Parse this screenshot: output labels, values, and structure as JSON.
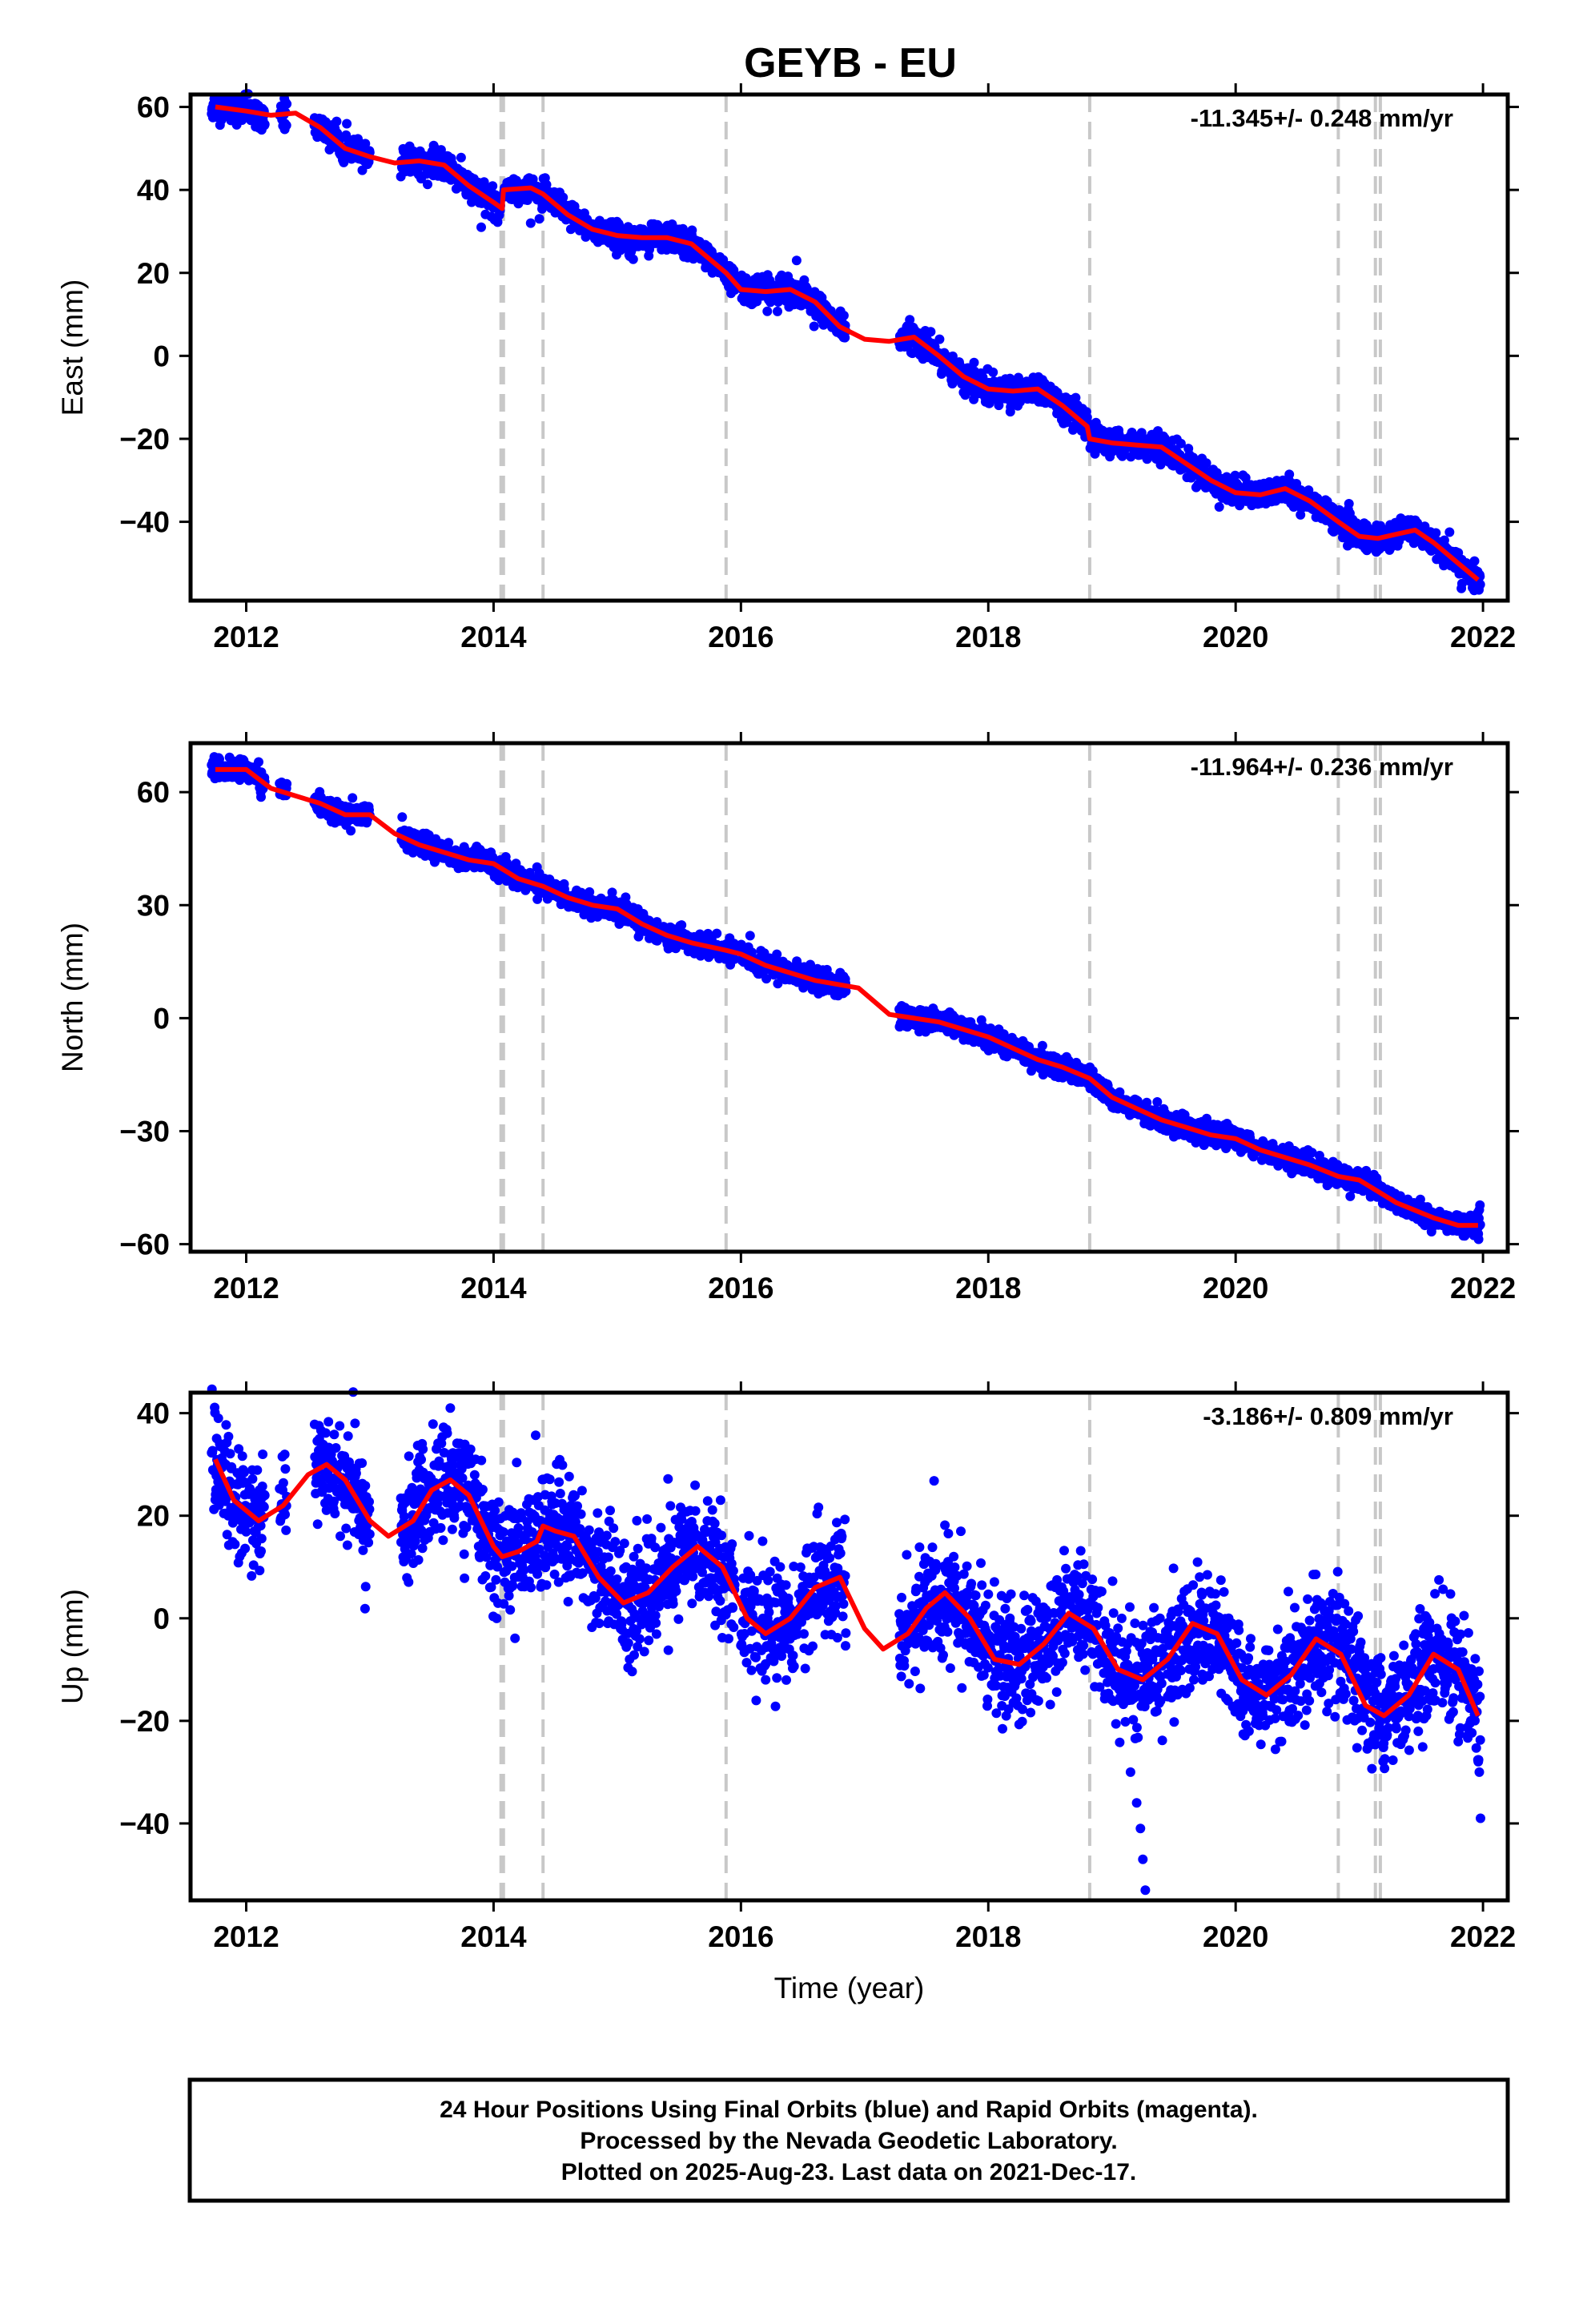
{
  "chart_data": [
    {
      "type": "scatter",
      "panel": "east",
      "title": "GEYB - EU",
      "xlabel": "",
      "ylabel": "East (mm)",
      "rate_label": "-11.345+/- 0.248 mm/yr",
      "xlim": [
        2011.55,
        2022.2
      ],
      "ylim": [
        -59,
        63
      ],
      "xticks": [
        2012,
        2014,
        2016,
        2018,
        2020,
        2022
      ],
      "xtick_labels": [
        "2012",
        "2014",
        "2016",
        "2018",
        "2020",
        "2022"
      ],
      "yticks": [
        -40,
        -20,
        0,
        20,
        40,
        60
      ],
      "ytick_labels": [
        "−40",
        "−20",
        "0",
        "20",
        "40",
        "60"
      ],
      "grid": false,
      "step_lines": [
        2014.06,
        2014.08,
        2014.4,
        2015.88,
        2018.82,
        2020.83,
        2021.13,
        2021.17
      ],
      "fit_line": {
        "color": "#ff0000",
        "x": [
          2011.75,
          2012.0,
          2012.2,
          2012.4,
          2012.6,
          2012.8,
          2013.0,
          2013.2,
          2013.4,
          2013.6,
          2013.8,
          2014.0,
          2014.07,
          2014.08,
          2014.3,
          2014.4,
          2014.6,
          2014.8,
          2015.0,
          2015.2,
          2015.4,
          2015.6,
          2015.88,
          2016.0,
          2016.2,
          2016.4,
          2016.6,
          2016.8,
          2017.0,
          2017.2,
          2017.4,
          2017.6,
          2017.8,
          2018.0,
          2018.2,
          2018.4,
          2018.6,
          2018.8,
          2018.82,
          2019.0,
          2019.2,
          2019.4,
          2019.6,
          2019.8,
          2020.0,
          2020.2,
          2020.4,
          2020.6,
          2020.83,
          2021.0,
          2021.15,
          2021.3,
          2021.45,
          2021.6,
          2021.8,
          2021.96
        ],
        "y": [
          60,
          59,
          58,
          58.5,
          55,
          50,
          48,
          46.5,
          47,
          46,
          41,
          37,
          35.5,
          40,
          40.5,
          39,
          34,
          30.5,
          29,
          28.5,
          28.5,
          27,
          20,
          16,
          15.5,
          16,
          13,
          7,
          4,
          3.5,
          4.5,
          0,
          -5,
          -8,
          -8.5,
          -8,
          -12,
          -17,
          -20,
          -21,
          -21.5,
          -22,
          -26,
          -30,
          -33,
          -33.5,
          -32,
          -35,
          -40,
          -43.5,
          -44,
          -43,
          -42,
          -45,
          -50,
          -54
        ]
      },
      "series": [
        {
          "name": "Final Orbits",
          "color": "#0000ff",
          "scatter": 1.6,
          "outliers": [
            [
              2013.9,
              31
            ],
            [
              2016.45,
              23
            ],
            [
              2014.3,
              32
            ]
          ],
          "x_ranges": [
            [
              2011.72,
              2012.15
            ],
            [
              2012.27,
              2012.33
            ],
            [
              2012.55,
              2013.0
            ],
            [
              2013.25,
              2014.06
            ],
            [
              2014.08,
              2015.95
            ],
            [
              2016.0,
              2016.85
            ],
            [
              2017.28,
              2021.98
            ]
          ]
        }
      ]
    },
    {
      "type": "scatter",
      "panel": "north",
      "title": "",
      "xlabel": "",
      "ylabel": "North (mm)",
      "rate_label": "-11.964+/- 0.236 mm/yr",
      "xlim": [
        2011.55,
        2022.2
      ],
      "ylim": [
        -62,
        73
      ],
      "xticks": [
        2012,
        2014,
        2016,
        2018,
        2020,
        2022
      ],
      "xtick_labels": [
        "2012",
        "2014",
        "2016",
        "2018",
        "2020",
        "2022"
      ],
      "yticks": [
        -60,
        -30,
        0,
        30,
        60
      ],
      "ytick_labels": [
        "−60",
        "−30",
        "0",
        "30",
        "60"
      ],
      "grid": false,
      "step_lines": [
        2014.06,
        2014.08,
        2014.4,
        2015.88,
        2018.82,
        2020.83,
        2021.13,
        2021.17
      ],
      "fit_line": {
        "color": "#ff0000",
        "x": [
          2011.75,
          2012.0,
          2012.2,
          2012.4,
          2012.6,
          2012.8,
          2013.0,
          2013.2,
          2013.4,
          2013.6,
          2013.8,
          2014.0,
          2014.2,
          2014.4,
          2014.6,
          2014.8,
          2015.0,
          2015.2,
          2015.4,
          2015.6,
          2015.88,
          2016.0,
          2016.2,
          2016.4,
          2016.6,
          2016.95,
          2017.2,
          2017.4,
          2017.6,
          2017.8,
          2018.0,
          2018.2,
          2018.4,
          2018.6,
          2018.82,
          2019.0,
          2019.2,
          2019.4,
          2019.6,
          2019.8,
          2020.0,
          2020.2,
          2020.4,
          2020.6,
          2020.83,
          2021.0,
          2021.15,
          2021.3,
          2021.45,
          2021.6,
          2021.8,
          2021.96
        ],
        "y": [
          66,
          66,
          61,
          59,
          57,
          54,
          54,
          49,
          46,
          44,
          42,
          41,
          37,
          35,
          32,
          30,
          29,
          25,
          22,
          20,
          18,
          17,
          14,
          12,
          10,
          8,
          1,
          0,
          -1,
          -3,
          -5,
          -8,
          -11,
          -13,
          -16,
          -21,
          -24,
          -27,
          -29,
          -31,
          -32,
          -35,
          -37,
          -39,
          -42,
          -43,
          -46,
          -49,
          -51,
          -53,
          -55,
          -55
        ]
      },
      "series": [
        {
          "name": "Final Orbits",
          "color": "#0000ff",
          "scatter": 1.4,
          "outliers": [
            [
              2011.85,
              64
            ],
            [
              2012.1,
              68
            ]
          ],
          "x_ranges": [
            [
              2011.72,
              2012.15
            ],
            [
              2012.27,
              2012.33
            ],
            [
              2012.55,
              2013.0
            ],
            [
              2013.25,
              2014.06
            ],
            [
              2014.08,
              2015.95
            ],
            [
              2016.0,
              2016.85
            ],
            [
              2017.28,
              2021.98
            ]
          ]
        }
      ]
    },
    {
      "type": "scatter",
      "panel": "up",
      "title": "",
      "xlabel": "Time (year)",
      "ylabel": "Up (mm)",
      "rate_label": "-3.186+/- 0.809 mm/yr",
      "xlim": [
        2011.55,
        2022.2
      ],
      "ylim": [
        -55,
        44
      ],
      "xticks": [
        2012,
        2014,
        2016,
        2018,
        2020,
        2022
      ],
      "xtick_labels": [
        "2012",
        "2014",
        "2016",
        "2018",
        "2020",
        "2022"
      ],
      "yticks": [
        -40,
        -20,
        0,
        20,
        40
      ],
      "ytick_labels": [
        "−40",
        "−20",
        "0",
        "20",
        "40"
      ],
      "grid": false,
      "step_lines": [
        2014.06,
        2014.08,
        2014.4,
        2015.88,
        2018.82,
        2020.83,
        2021.13,
        2021.17
      ],
      "fit_line": {
        "color": "#ff0000",
        "x": [
          2011.75,
          2011.9,
          2012.1,
          2012.3,
          2012.5,
          2012.65,
          2012.8,
          2013.0,
          2013.15,
          2013.35,
          2013.5,
          2013.65,
          2013.8,
          2014.0,
          2014.07,
          2014.2,
          2014.35,
          2014.4,
          2014.5,
          2014.65,
          2014.85,
          2015.05,
          2015.25,
          2015.45,
          2015.65,
          2015.85,
          2016.05,
          2016.2,
          2016.4,
          2016.6,
          2016.8,
          2017.0,
          2017.15,
          2017.35,
          2017.5,
          2017.65,
          2017.85,
          2018.05,
          2018.25,
          2018.45,
          2018.65,
          2018.85,
          2019.05,
          2019.25,
          2019.45,
          2019.65,
          2019.85,
          2020.05,
          2020.25,
          2020.45,
          2020.65,
          2020.85,
          2021.05,
          2021.2,
          2021.4,
          2021.6,
          2021.8,
          2021.96
        ],
        "y": [
          31,
          23,
          19,
          22,
          28,
          30,
          27,
          19,
          16,
          19,
          25,
          27,
          24,
          14,
          12,
          13,
          15,
          18,
          17,
          16,
          8,
          3,
          5,
          10,
          14,
          10,
          0,
          -3,
          0,
          6,
          8,
          -2,
          -6,
          -3,
          2,
          5,
          0,
          -8,
          -9,
          -5,
          1,
          -2,
          -10,
          -12,
          -8,
          -1,
          -3,
          -12,
          -15,
          -11,
          -4,
          -7,
          -17,
          -19,
          -15,
          -7,
          -10,
          -19
        ]
      },
      "series": [
        {
          "name": "Final Orbits",
          "color": "#0000ff",
          "scatter": 5.5,
          "outliers": [
            [
              2019.15,
              -30
            ],
            [
              2019.2,
              -36
            ],
            [
              2019.23,
              -41
            ],
            [
              2019.25,
              -47
            ],
            [
              2019.27,
              -53
            ],
            [
              2013.65,
              41
            ],
            [
              2012.88,
              38
            ],
            [
              2021.98,
              -39
            ],
            [
              2021.97,
              -30
            ],
            [
              2016.2,
              -12
            ],
            [
              2015.1,
              -8
            ]
          ],
          "x_ranges": [
            [
              2011.72,
              2012.15
            ],
            [
              2012.27,
              2012.33
            ],
            [
              2012.55,
              2013.0
            ],
            [
              2013.25,
              2014.06
            ],
            [
              2014.08,
              2015.95
            ],
            [
              2016.0,
              2016.85
            ],
            [
              2017.28,
              2021.98
            ]
          ]
        }
      ]
    }
  ],
  "footer": {
    "line1": "24 Hour Positions Using Final Orbits (blue) and Rapid Orbits (magenta).",
    "line2": "Processed by the Nevada Geodetic Laboratory.",
    "line3": "Plotted on 2025-Aug-23. Last data on 2021-Dec-17."
  }
}
